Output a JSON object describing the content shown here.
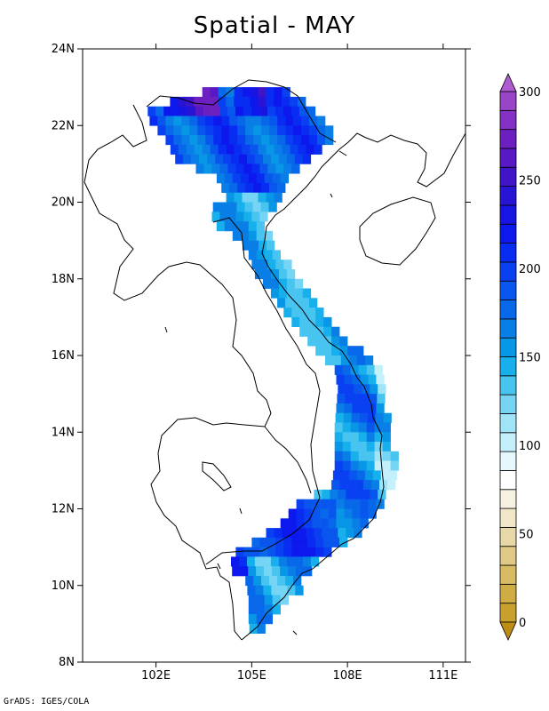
{
  "title": "Spatial - MAY",
  "footer": "GrADS: IGES/COLA",
  "map": {
    "lat_range": [
      8,
      24
    ],
    "lon_range": [
      99.7,
      111.7
    ],
    "lat_ticks": [
      "8N",
      "10N",
      "12N",
      "14N",
      "16N",
      "18N",
      "20N",
      "22N",
      "24N"
    ],
    "lon_ticks": [
      "102E",
      "105E",
      "108E",
      "111E"
    ]
  },
  "colorbar": {
    "min": 0,
    "max": 300,
    "labels": [
      "0",
      "50",
      "100",
      "150",
      "200",
      "250",
      "300"
    ],
    "colors": [
      "#c8a02c",
      "#d0ac44",
      "#d8ba62",
      "#e0c886",
      "#e8d8a8",
      "#f0e6c8",
      "#f8f2e2",
      "#ffffff",
      "#e4f8fe",
      "#c4f0fc",
      "#a0e4f8",
      "#76d4f4",
      "#48c4f0",
      "#18b0ec",
      "#0896e6",
      "#087ee6",
      "#0868ea",
      "#0856ee",
      "#0840f2",
      "#082cf2",
      "#0c18ee",
      "#1814e2",
      "#2814d4",
      "#4014c8",
      "#5818c4",
      "#6c20c0",
      "#8430c4",
      "#9a44c8"
    ],
    "under_color": "#bc8c14",
    "over_color": "#ae5ad0"
  }
}
